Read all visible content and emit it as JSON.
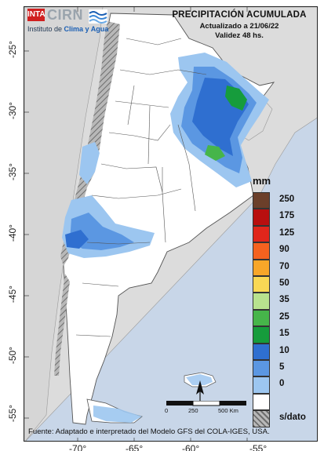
{
  "header": {
    "inta_logo": "INTA",
    "cirn_logo": "CIRN",
    "institute_prefix": "Instituto de ",
    "institute_highlight": "Clima y Agua"
  },
  "title_block": {
    "title": "PRECIPITACIÓN ACUMULADA",
    "updated": "Actualizado a 21/06/22",
    "validity": "Validez 48 hs."
  },
  "axes": {
    "latitude_labels": [
      "-25°",
      "-30°",
      "-35°",
      "-40°",
      "-45°",
      "-50°",
      "-55°"
    ],
    "longitude_labels": [
      "-70°",
      "-65°",
      "-60°",
      "-55°"
    ]
  },
  "legend": {
    "unit": "mm",
    "classes": [
      {
        "label": "250",
        "color": "#6b3f2a"
      },
      {
        "label": "175",
        "color": "#b80f0f"
      },
      {
        "label": "125",
        "color": "#e0261b"
      },
      {
        "label": "90",
        "color": "#f4621f"
      },
      {
        "label": "70",
        "color": "#f8a629"
      },
      {
        "label": "50",
        "color": "#f9d855"
      },
      {
        "label": "35",
        "color": "#b8e28e"
      },
      {
        "label": "25",
        "color": "#46b54a"
      },
      {
        "label": "15",
        "color": "#169c3c"
      },
      {
        "label": "10",
        "color": "#2f6fd0"
      },
      {
        "label": "5",
        "color": "#5b97e2"
      },
      {
        "label": "0",
        "color": "#9cc6f0"
      },
      {
        "label": "",
        "color": "#ffffff"
      },
      {
        "label": "s/dato",
        "color": "#8a8a8a"
      }
    ]
  },
  "scale_bar": {
    "start": "0",
    "mid": "250",
    "end": "500 Km"
  },
  "footer": {
    "source": "Fuente: Adaptado e interpretado del Modelo GFS del COLA-IGES, USA."
  },
  "colors": {
    "ocean": "#c8d6e8",
    "neighbor_land": "#dcdcdc",
    "argentina": "#ffffff",
    "nodata_hatch": "#8a8a8a",
    "precip_light": "#9cc6f0",
    "precip_mid": "#5b97e2",
    "precip_heavy": "#2f6fd0",
    "precip_green": "#169c3c"
  }
}
